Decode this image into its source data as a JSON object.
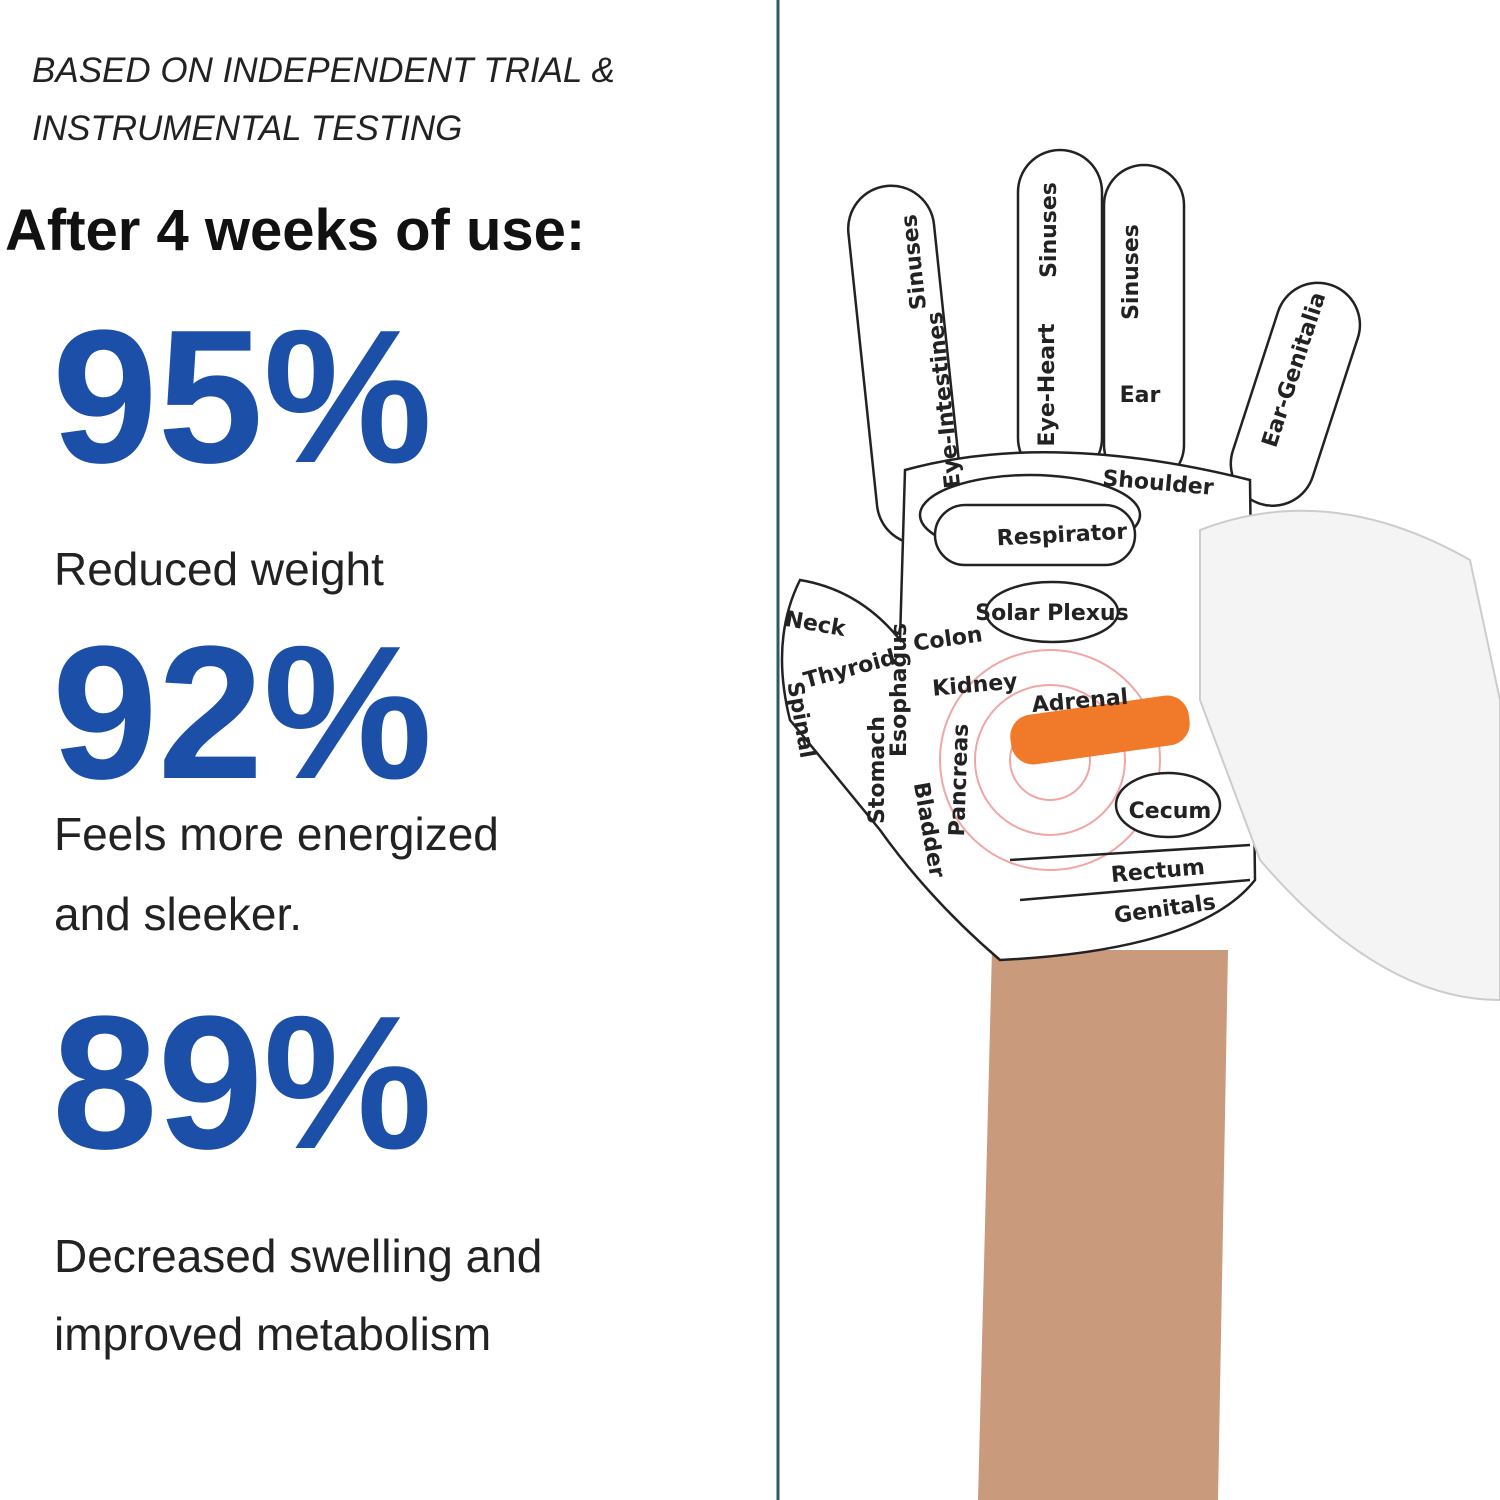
{
  "header": {
    "note_lines": [
      "BASED ON INDEPENDENT TRIAL &",
      "INSTRUMENTAL TESTING"
    ],
    "heading": "After 4 weeks of use:"
  },
  "stats": [
    {
      "value": "95%",
      "description_lines": [
        "Reduced weight"
      ]
    },
    {
      "value": "92%",
      "description_lines": [
        "Feels more energized",
        "and sleeker."
      ]
    },
    {
      "value": "89%",
      "description_lines": [
        "Decreased swelling and",
        "improved metabolism"
      ]
    }
  ],
  "glove_labels": [
    "Sinuses",
    "Sinuses",
    "Sinuses",
    "Eye-Intestines",
    "Eye-Heart",
    "Ear",
    "Ear-Genitalia",
    "Shoulder",
    "Respirator",
    "Solar Plexus",
    "Colon",
    "Kidney",
    "Adrenal",
    "Neck",
    "Thyroid",
    "Esophagus",
    "Spinal",
    "Stomach",
    "Pancreas",
    "Bladder",
    "Cecum",
    "Rectum",
    "Genitals"
  ]
}
